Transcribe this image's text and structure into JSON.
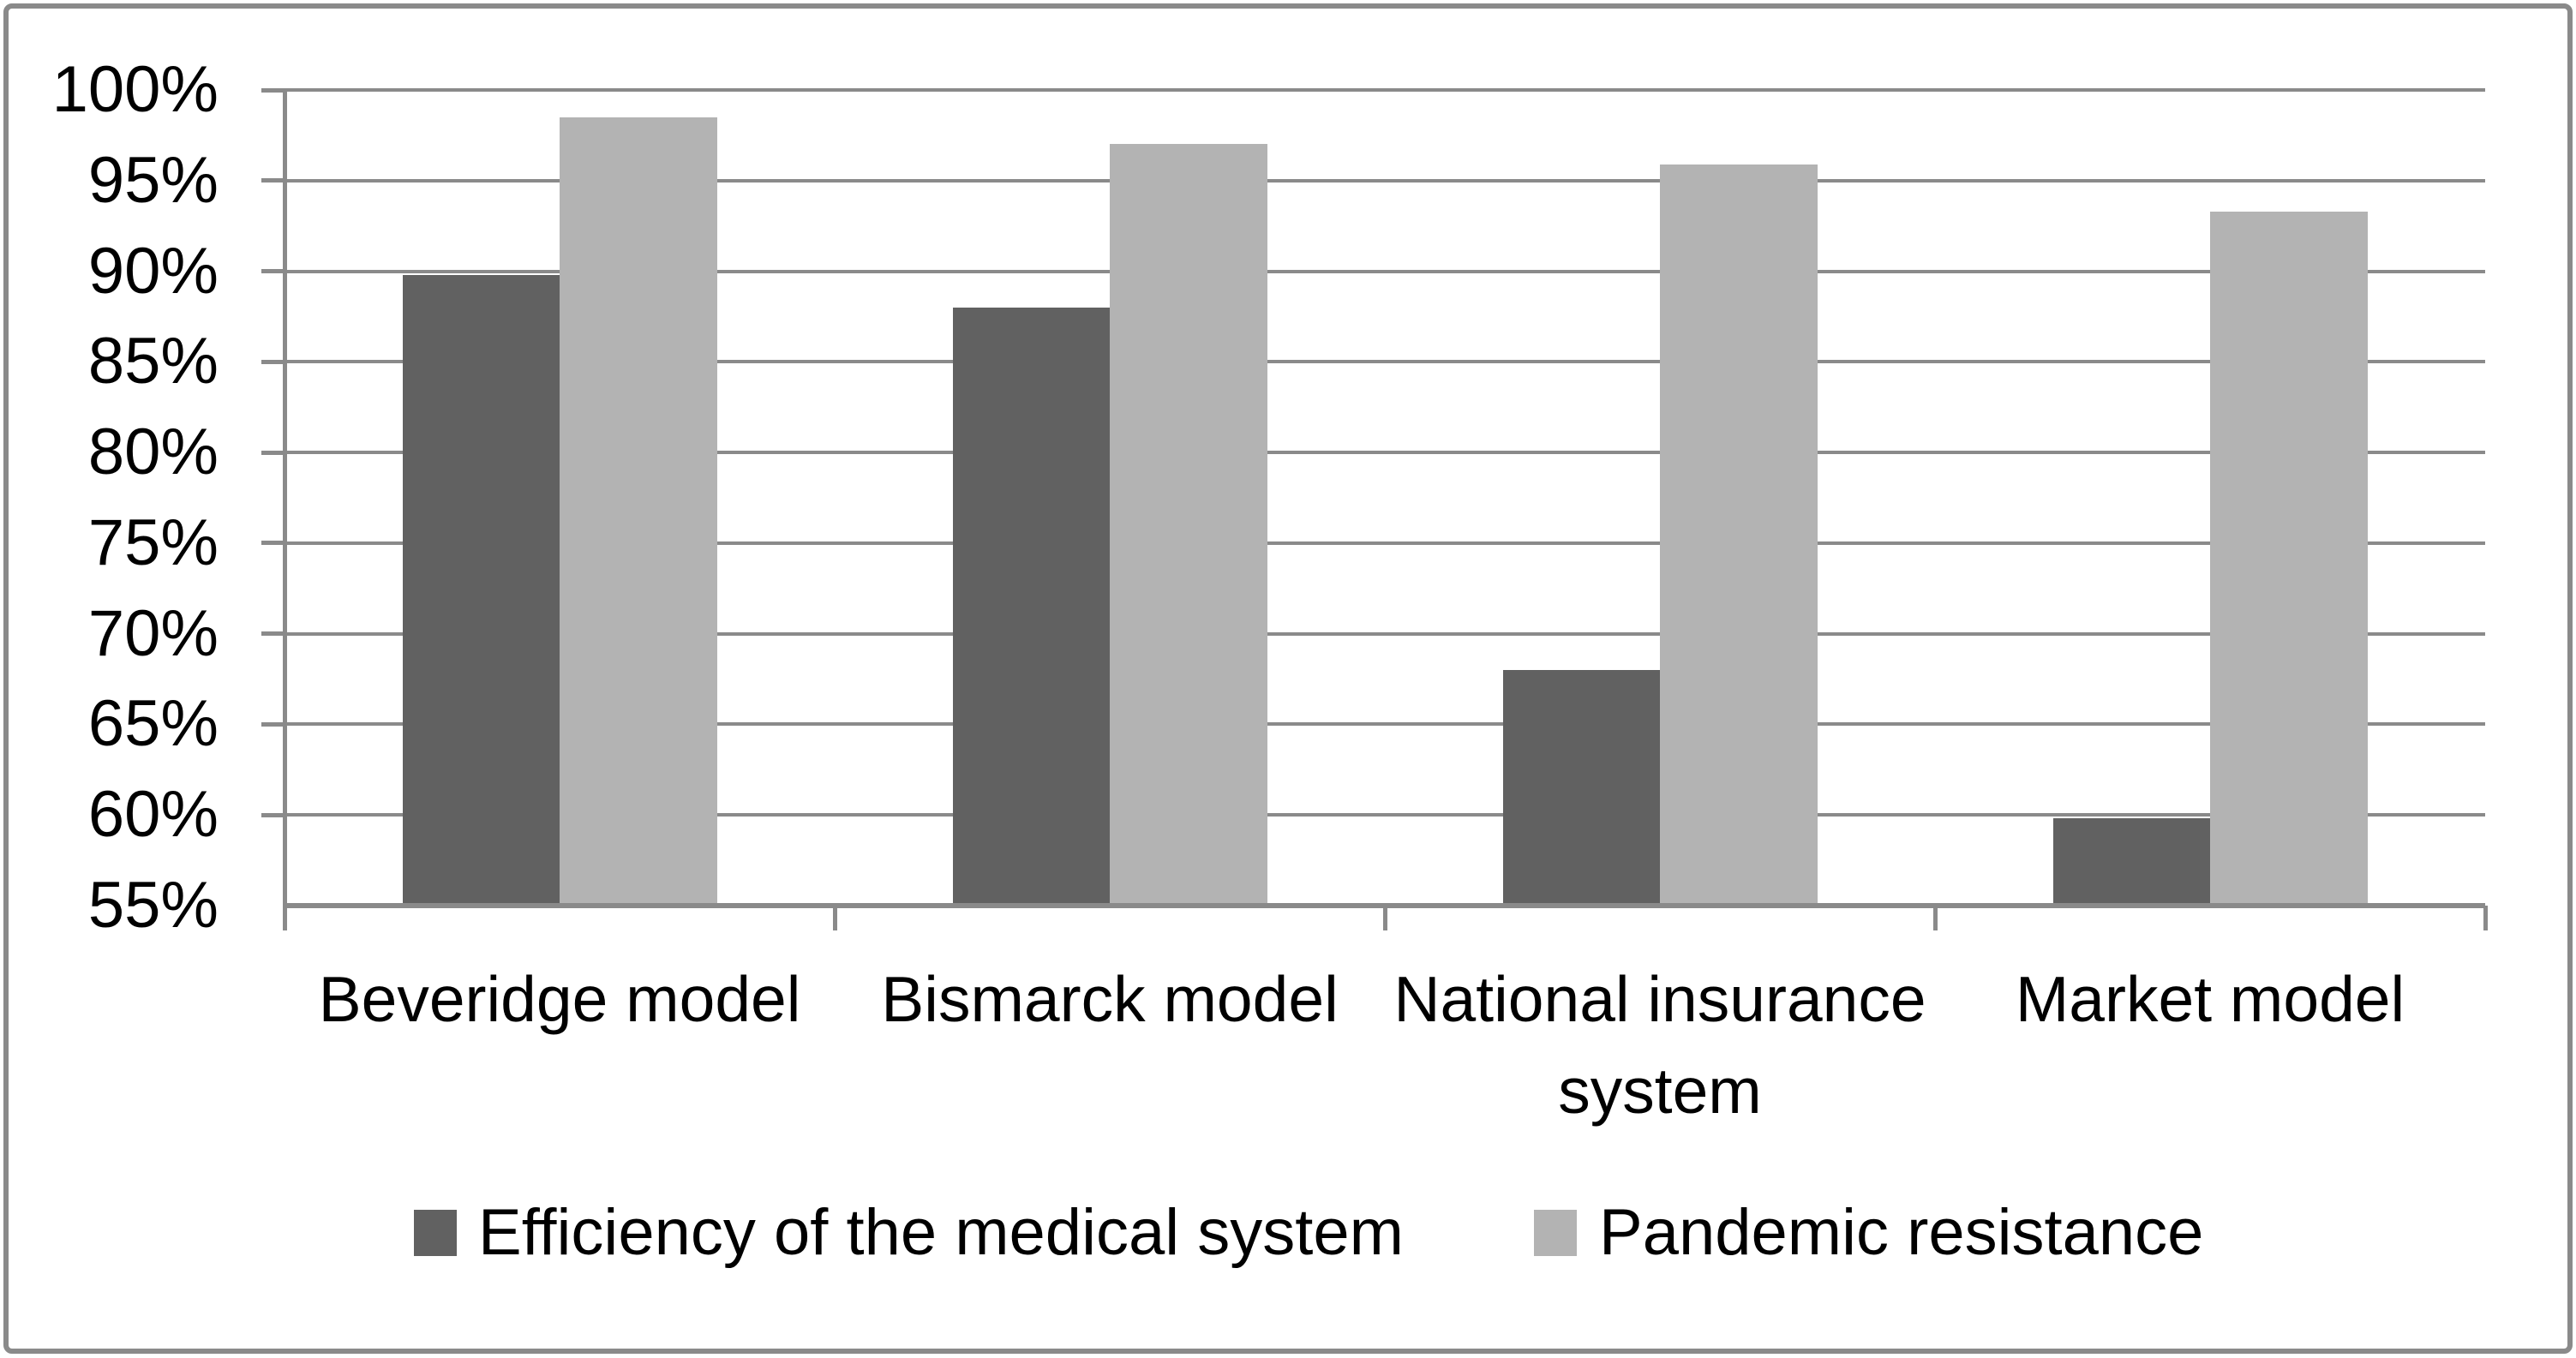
{
  "chart_data": {
    "type": "bar",
    "title": "",
    "categories": [
      "Beveridge model",
      "Bismarck model",
      "National insurance system",
      "Market model"
    ],
    "series": [
      {
        "name": "Efficiency of the medical system",
        "color": "#616161",
        "values": [
          89.8,
          88,
          68,
          59.8
        ]
      },
      {
        "name": "Pandemic resistance",
        "color": "#b3b3b3",
        "values": [
          98.5,
          97,
          95.9,
          93.3
        ]
      }
    ],
    "xlabel": "",
    "ylabel": "",
    "ylim": [
      55,
      100
    ],
    "ytick_step": 5,
    "ytick_labels": [
      "100%",
      "95%",
      "90%",
      "85%",
      "80%",
      "75%",
      "70%",
      "65%",
      "60%",
      "55%"
    ],
    "grid": true,
    "legend_position": "bottom"
  },
  "colors": {
    "grid": "#8a8a8a",
    "axis": "#8a8a8a",
    "border": "#8a8a8a",
    "text": "#000000",
    "background": "#ffffff"
  }
}
